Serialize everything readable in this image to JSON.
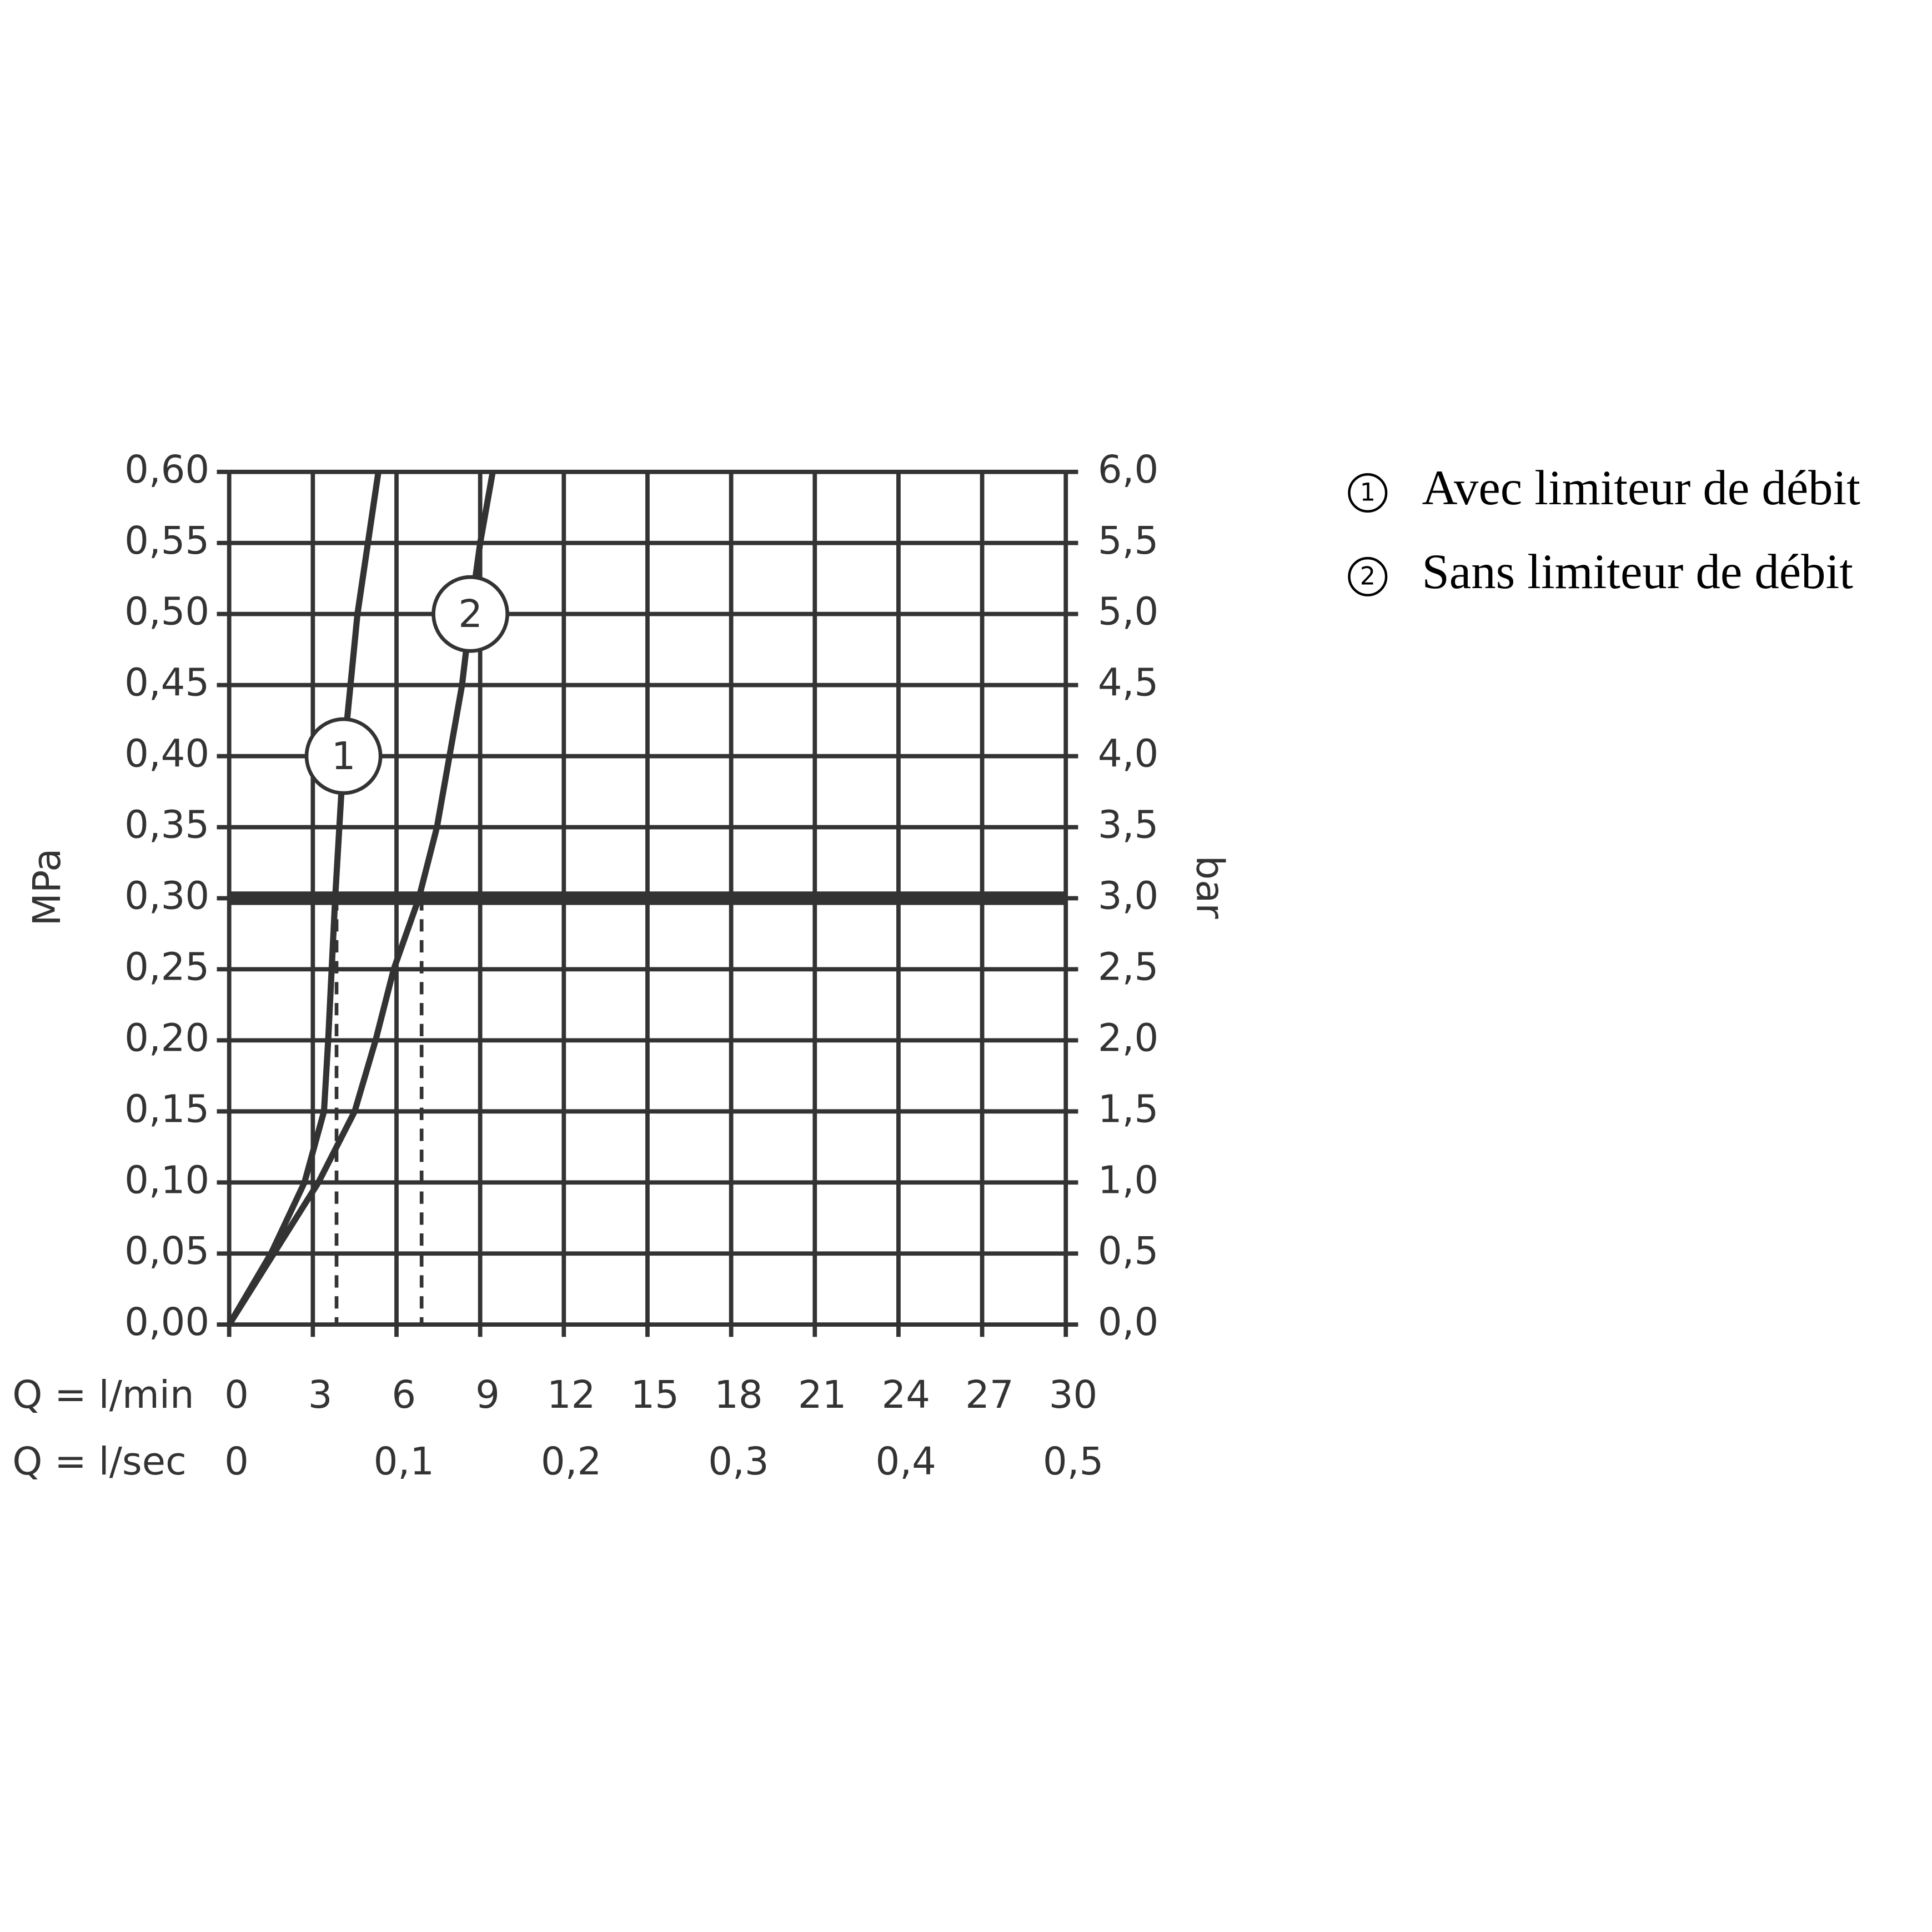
{
  "chart_data": {
    "type": "line",
    "xlabel": "Q = l/min",
    "x2label": "Q = l/sec",
    "ylabel": "MPa",
    "y2label": "bar",
    "xlim": [
      0,
      30
    ],
    "xticks": [
      0,
      3,
      6,
      9,
      12,
      15,
      18,
      21,
      24,
      27,
      30
    ],
    "x2lim": [
      0,
      0.5
    ],
    "x2ticks": [
      0,
      {
        "value": 0.1,
        "label": "0,1"
      },
      {
        "value": 0.2,
        "label": "0,2"
      },
      {
        "value": 0.3,
        "label": "0,3"
      },
      {
        "value": 0.4,
        "label": "0,4"
      },
      {
        "value": 0.5,
        "label": "0,5"
      }
    ],
    "ylim": [
      0,
      0.6
    ],
    "yticks": [
      {
        "value": 0,
        "label": "0,00"
      },
      {
        "value": 0.05,
        "label": "0,05"
      },
      {
        "value": 0.1,
        "label": "0,10"
      },
      {
        "value": 0.15,
        "label": "0,15"
      },
      {
        "value": 0.2,
        "label": "0,20"
      },
      {
        "value": 0.25,
        "label": "0,25"
      },
      {
        "value": 0.3,
        "label": "0,30"
      },
      {
        "value": 0.35,
        "label": "0,35"
      },
      {
        "value": 0.4,
        "label": "0,40"
      },
      {
        "value": 0.45,
        "label": "0,45"
      },
      {
        "value": 0.5,
        "label": "0,50"
      },
      {
        "value": 0.55,
        "label": "0,55"
      },
      {
        "value": 0.6,
        "label": "0,60"
      }
    ],
    "y2lim": [
      0,
      6
    ],
    "y2ticks": [
      {
        "value": 0,
        "label": "0,0"
      },
      {
        "value": 0.5,
        "label": "0,5"
      },
      {
        "value": 1,
        "label": "1,0"
      },
      {
        "value": 1.5,
        "label": "1,5"
      },
      {
        "value": 2,
        "label": "2,0"
      },
      {
        "value": 2.5,
        "label": "2,5"
      },
      {
        "value": 3,
        "label": "3,0"
      },
      {
        "value": 3.5,
        "label": "3,5"
      },
      {
        "value": 4,
        "label": "4,0"
      },
      {
        "value": 4.5,
        "label": "4,5"
      },
      {
        "value": 5,
        "label": "5,0"
      },
      {
        "value": 5.5,
        "label": "5,5"
      },
      {
        "value": 6,
        "label": "6,0"
      }
    ],
    "grid": true,
    "reference_line": {
      "y": 0.3,
      "dashed_x": [
        3.85,
        6.9
      ]
    },
    "series": [
      {
        "name": "Avec limiteur de débit",
        "marker": "1",
        "color": "#333333",
        "x": [
          0,
          1.5,
          2.7,
          3.4,
          3.55,
          3.8,
          4.1,
          4.6,
          5.35
        ],
        "values": [
          0,
          0.05,
          0.1,
          0.15,
          0.2,
          0.3,
          0.4,
          0.5,
          0.6
        ]
      },
      {
        "name": "Sans limiteur de débit",
        "marker": "2",
        "color": "#333333",
        "x": [
          0,
          1.6,
          3.2,
          4.5,
          5.25,
          5.9,
          6.8,
          7.45,
          7.9,
          8.35,
          8.65,
          9.0,
          9.45
        ],
        "values": [
          0,
          0.05,
          0.1,
          0.15,
          0.2,
          0.25,
          0.3,
          0.35,
          0.4,
          0.45,
          0.5,
          0.55,
          0.6
        ]
      }
    ]
  }
}
